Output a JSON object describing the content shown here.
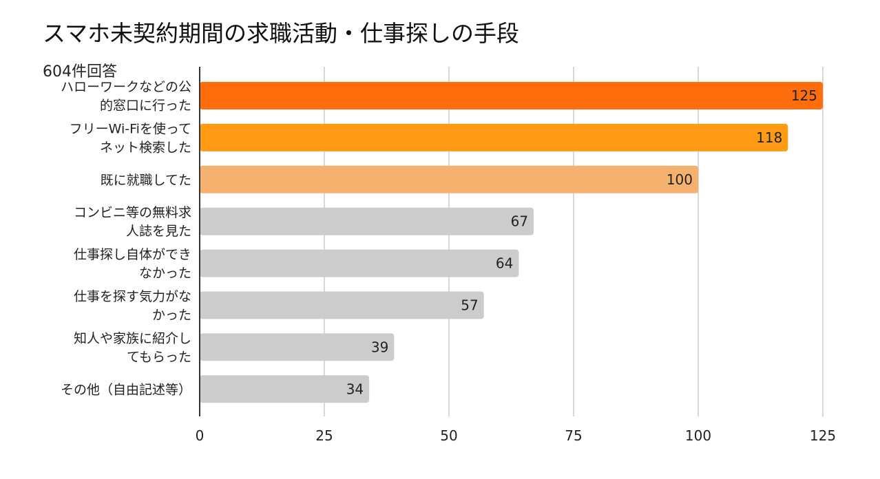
{
  "chart_data": {
    "type": "bar",
    "orientation": "horizontal",
    "title": "スマホ未契約期間の求職活動・仕事探しの手段",
    "subtitle": "604件回答",
    "categories": [
      [
        "ハローワークなどの公",
        "的窓口に行った"
      ],
      [
        "フリーWi-Fiを使って",
        "ネット検索した"
      ],
      [
        "既に就職してた"
      ],
      [
        "コンビニ等の無料求",
        "人誌を見た"
      ],
      [
        "仕事探し自体ができ",
        "なかった"
      ],
      [
        "仕事を探す気力がな",
        "かった"
      ],
      [
        "知人や家族に紹介し",
        "てもらった"
      ],
      [
        "その他（自由記述等）"
      ]
    ],
    "values": [
      125,
      118,
      100,
      67,
      64,
      57,
      39,
      34
    ],
    "colors": [
      "#FF6D0C",
      "#FF9A14",
      "#F4B26E",
      "#CCCCCC",
      "#CCCCCC",
      "#CCCCCC",
      "#CCCCCC",
      "#CCCCCC"
    ],
    "xlim": [
      0,
      125
    ],
    "xticks": [
      0,
      25,
      50,
      75,
      100,
      125
    ],
    "grid": true,
    "data_labels": true,
    "legend": "none"
  }
}
